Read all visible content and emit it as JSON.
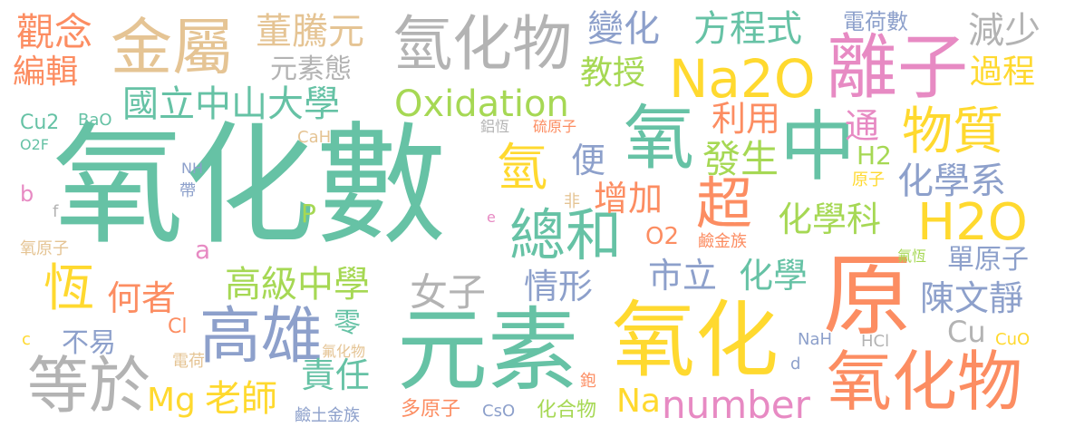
{
  "palette": {
    "green": "#66c2a5",
    "orange": "#fc8d62",
    "blue": "#8da0cb",
    "pink": "#e78ac3",
    "lime": "#a6d854",
    "yellow": "#ffd92f",
    "tan": "#e5c494",
    "gray": "#b3b3b3"
  },
  "words": [
    {
      "text": "氧化數",
      "color": "#66c2a5"
    },
    {
      "text": "元素",
      "color": "#66c2a5"
    },
    {
      "text": "氧化",
      "color": "#ffd92f"
    },
    {
      "text": "原",
      "color": "#fc8d62"
    },
    {
      "text": "氧化物",
      "color": "#fc8d62"
    },
    {
      "text": "金屬",
      "color": "#e5c494"
    },
    {
      "text": "氫化物",
      "color": "#b3b3b3"
    },
    {
      "text": "離子",
      "color": "#e78ac3"
    },
    {
      "text": "Na2O",
      "color": "#ffd92f"
    },
    {
      "text": "氧",
      "color": "#66c2a5"
    },
    {
      "text": "中",
      "color": "#66c2a5"
    },
    {
      "text": "物質",
      "color": "#ffd92f"
    },
    {
      "text": "H2O",
      "color": "#ffd92f"
    },
    {
      "text": "高雄",
      "color": "#8da0cb"
    },
    {
      "text": "等於",
      "color": "#b3b3b3"
    },
    {
      "text": "總和",
      "color": "#66c2a5"
    },
    {
      "text": "超",
      "color": "#fc8d62"
    },
    {
      "text": "氫",
      "color": "#ffd92f"
    },
    {
      "text": "恆",
      "color": "#ffd92f"
    },
    {
      "text": "Oxidation",
      "color": "#a6d854"
    },
    {
      "text": "國立中山大學",
      "color": "#66c2a5"
    },
    {
      "text": "高級中學",
      "color": "#a6d854"
    },
    {
      "text": "number",
      "color": "#e78ac3"
    },
    {
      "text": "觀念",
      "color": "#fc8d62"
    },
    {
      "text": "編輯",
      "color": "#fc8d62"
    },
    {
      "text": "董騰元",
      "color": "#e5c494"
    },
    {
      "text": "元素態",
      "color": "#b3b3b3"
    },
    {
      "text": "變化",
      "color": "#8da0cb"
    },
    {
      "text": "方程式",
      "color": "#66c2a5"
    },
    {
      "text": "教授",
      "color": "#a6d854"
    },
    {
      "text": "減少",
      "color": "#b3b3b3"
    },
    {
      "text": "過程",
      "color": "#ffd92f"
    },
    {
      "text": "電荷數",
      "color": "#8da0cb"
    },
    {
      "text": "利用",
      "color": "#fc8d62"
    },
    {
      "text": "通",
      "color": "#e78ac3"
    },
    {
      "text": "便",
      "color": "#8da0cb"
    },
    {
      "text": "發生",
      "color": "#a6d854"
    },
    {
      "text": "H2",
      "color": "#a6d854"
    },
    {
      "text": "化學系",
      "color": "#8da0cb"
    },
    {
      "text": "原子",
      "color": "#ffd92f"
    },
    {
      "text": "化學科",
      "color": "#a6d854"
    },
    {
      "text": "增加",
      "color": "#fc8d62"
    },
    {
      "text": "O2",
      "color": "#fc8d62"
    },
    {
      "text": "鹼金族",
      "color": "#fc8d62"
    },
    {
      "text": "氟恆",
      "color": "#a6d854"
    },
    {
      "text": "單原子",
      "color": "#8da0cb"
    },
    {
      "text": "市立",
      "color": "#8da0cb"
    },
    {
      "text": "化學",
      "color": "#66c2a5"
    },
    {
      "text": "陳文靜",
      "color": "#8da0cb"
    },
    {
      "text": "情形",
      "color": "#8da0cb"
    },
    {
      "text": "女子",
      "color": "#b3b3b3"
    },
    {
      "text": "何者",
      "color": "#fc8d62"
    },
    {
      "text": "零",
      "color": "#66c2a5"
    },
    {
      "text": "不易",
      "color": "#8da0cb"
    },
    {
      "text": "責任",
      "color": "#66c2a5"
    },
    {
      "text": "Mg",
      "color": "#ffd92f"
    },
    {
      "text": "老師",
      "color": "#ffd92f"
    },
    {
      "text": "Na",
      "color": "#ffd92f"
    },
    {
      "text": "Cu",
      "color": "#b3b3b3"
    },
    {
      "text": "CuO",
      "color": "#ffd92f"
    },
    {
      "text": "NaH",
      "color": "#8da0cb"
    },
    {
      "text": "HCl",
      "color": "#b3b3b3"
    },
    {
      "text": "d",
      "color": "#8da0cb"
    },
    {
      "text": "鉋",
      "color": "#fc8d62"
    },
    {
      "text": "多原子",
      "color": "#fc8d62"
    },
    {
      "text": "CsO",
      "color": "#8da0cb"
    },
    {
      "text": "化合物",
      "color": "#a6d854"
    },
    {
      "text": "鹼土金族",
      "color": "#8da0cb"
    },
    {
      "text": "電荷",
      "color": "#e5c494"
    },
    {
      "text": "氟化物",
      "color": "#e5c494"
    },
    {
      "text": "Cl",
      "color": "#fc8d62"
    },
    {
      "text": "c",
      "color": "#ffd92f"
    },
    {
      "text": "a",
      "color": "#e78ac3"
    },
    {
      "text": "氧原子",
      "color": "#e5c494"
    },
    {
      "text": "b",
      "color": "#e78ac3"
    },
    {
      "text": "f",
      "color": "#b3b3b3"
    },
    {
      "text": "帶",
      "color": "#8da0cb"
    },
    {
      "text": "NH",
      "color": "#8da0cb"
    },
    {
      "text": "P",
      "color": "#a6d854"
    },
    {
      "text": "非",
      "color": "#e5c494"
    },
    {
      "text": "e",
      "color": "#e78ac3"
    },
    {
      "text": "鋁恆",
      "color": "#b3b3b3"
    },
    {
      "text": "硫原子",
      "color": "#fc8d62"
    },
    {
      "text": "Cu2",
      "color": "#66c2a5"
    },
    {
      "text": "BaO",
      "color": "#66c2a5"
    },
    {
      "text": "O2F",
      "color": "#66c2a5"
    },
    {
      "text": "CaH",
      "color": "#e5c494"
    }
  ]
}
